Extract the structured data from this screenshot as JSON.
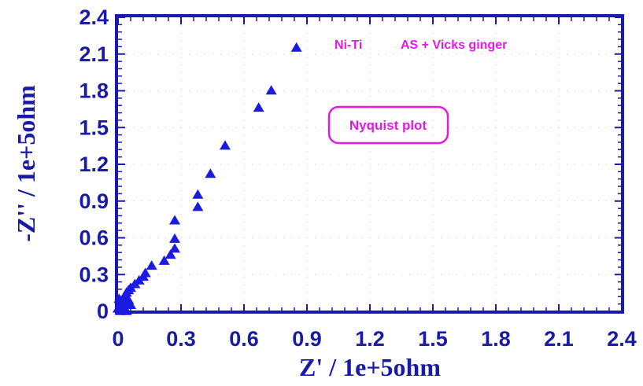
{
  "chart_data": {
    "type": "scatter",
    "title": "",
    "xlabel": "Z' / 1e+5ohm",
    "ylabel": "-Z'' / 1e+5ohm",
    "xlim": [
      0,
      2.4
    ],
    "ylim": [
      0,
      2.4
    ],
    "x_ticks": [
      "0",
      "0.3",
      "0.6",
      "0.9",
      "1.2",
      "1.5",
      "1.8",
      "2.1",
      "2.4"
    ],
    "y_ticks": [
      "0",
      "0.3",
      "0.6",
      "0.9",
      "1.2",
      "1.5",
      "1.8",
      "2.1",
      "2.4"
    ],
    "grid": "dotted",
    "marker": "triangle",
    "series": [
      {
        "color": "#1a1ae0",
        "points": [
          [
            0.0,
            0.02
          ],
          [
            0.01,
            0.05
          ],
          [
            0.02,
            0.08
          ],
          [
            0.005,
            0.1
          ],
          [
            0.03,
            0.12
          ],
          [
            0.04,
            0.15
          ],
          [
            0.05,
            0.17
          ],
          [
            0.06,
            0.19
          ],
          [
            0.08,
            0.22
          ],
          [
            0.1,
            0.25
          ],
          [
            0.12,
            0.28
          ],
          [
            0.13,
            0.31
          ],
          [
            0.16,
            0.37
          ],
          [
            0.22,
            0.41
          ],
          [
            0.25,
            0.46
          ],
          [
            0.27,
            0.51
          ],
          [
            0.27,
            0.59
          ],
          [
            0.27,
            0.74
          ],
          [
            0.38,
            0.85
          ],
          [
            0.38,
            0.95
          ],
          [
            0.44,
            1.12
          ],
          [
            0.51,
            1.35
          ],
          [
            0.67,
            1.66
          ],
          [
            0.73,
            1.8
          ],
          [
            0.85,
            2.15
          ],
          [
            0.03,
            0.03
          ],
          [
            0.04,
            0.06
          ],
          [
            0.05,
            0.09
          ],
          [
            0.06,
            0.05
          ],
          [
            0.02,
            0.01
          ],
          [
            0.04,
            0.0
          ],
          [
            0.01,
            0.0
          ]
        ]
      }
    ],
    "annotations": {
      "sample": "Ni-Ti",
      "medium": "AS + Vicks ginger",
      "plot_type": "Nyquist plot"
    }
  },
  "colors": {
    "axis": "#1a1aa8",
    "marker": "#1a1ae0",
    "annotation": "#e41ae4",
    "grid": "#c8c8c8"
  }
}
